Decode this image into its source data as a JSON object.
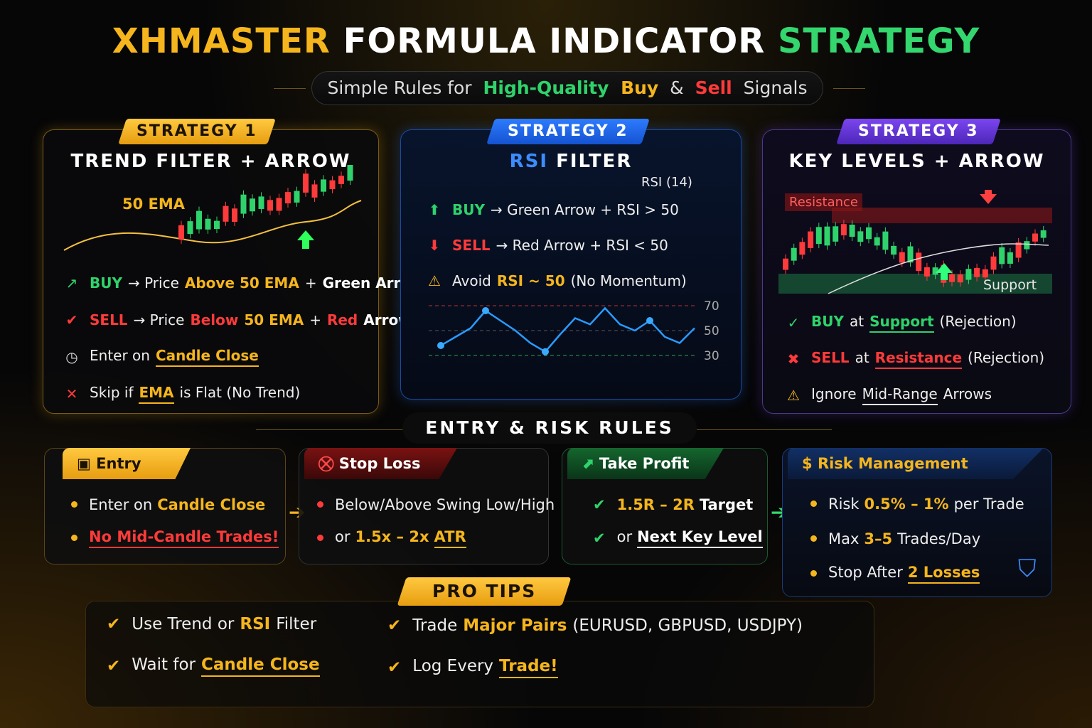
{
  "title": {
    "part1": "XHMASTER",
    "part2": "FORMULA INDICATOR",
    "part3": "STRATEGY"
  },
  "subtitle": [
    {
      "t": "Simple Rules for ",
      "c": ""
    },
    {
      "t": "High-Quality",
      "c": "g"
    },
    {
      "t": " Buy",
      "c": "y"
    },
    {
      "t": " & ",
      "c": ""
    },
    {
      "t": "Sell",
      "c": "r"
    },
    {
      "t": " Signals",
      "c": ""
    }
  ],
  "s1": {
    "tab": "STRATEGY 1",
    "title": "TREND FILTER + ARROW",
    "chart_label": "50 EMA",
    "rules": [
      {
        "icon": "trend-up-icon",
        "glyph": "↗",
        "col": "#2fd36b",
        "parts": [
          {
            "t": "BUY",
            "c": "g"
          },
          {
            "t": "→ Price",
            "c": ""
          },
          {
            "t": "Above 50 EMA",
            "c": "y"
          },
          {
            "t": "+",
            "c": ""
          },
          {
            "t": "Green Arrow",
            "c": "w"
          }
        ]
      },
      {
        "icon": "check-icon",
        "glyph": "✔",
        "col": "#ff3a3a",
        "parts": [
          {
            "t": "SELL",
            "c": "r"
          },
          {
            "t": "→ Price",
            "c": ""
          },
          {
            "t": "Below",
            "c": "r"
          },
          {
            "t": "50 EMA",
            "c": "y"
          },
          {
            "t": "+",
            "c": ""
          },
          {
            "t": "Red",
            "c": "r"
          },
          {
            "t": "Arrow",
            "c": "w"
          }
        ]
      },
      {
        "icon": "clock-icon",
        "glyph": "◷",
        "col": "#ddd",
        "parts": [
          {
            "t": "Enter on",
            "c": ""
          },
          {
            "t": "Candle Close",
            "c": "y u"
          }
        ]
      },
      {
        "icon": "close-icon",
        "glyph": "✕",
        "col": "#ff3a3a",
        "parts": [
          {
            "t": "Skip if",
            "c": ""
          },
          {
            "t": "EMA",
            "c": "y u"
          },
          {
            "t": "is Flat (No Trend)",
            "c": ""
          }
        ]
      }
    ]
  },
  "s2": {
    "tab": "STRATEGY 2",
    "title_a": "RSI",
    "title_b": "FILTER",
    "rsi_label": "RSI (14)",
    "rules": [
      {
        "icon": "arrow-up-icon",
        "glyph": "⬆",
        "col": "#2fd36b",
        "parts": [
          {
            "t": "BUY",
            "c": "g"
          },
          {
            "t": "→  Green Arrow  +  RSI > 50",
            "c": ""
          }
        ]
      },
      {
        "icon": "arrow-down-icon",
        "glyph": "⬇",
        "col": "#ff3a3a",
        "parts": [
          {
            "t": "SELL",
            "c": "r"
          },
          {
            "t": "→  Red Arrow  +  RSI < 50",
            "c": ""
          }
        ]
      },
      {
        "icon": "warning-icon",
        "glyph": "⚠",
        "col": "#f5b51c",
        "parts": [
          {
            "t": "Avoid",
            "c": ""
          },
          {
            "t": "RSI ~ 50",
            "c": "y"
          },
          {
            "t": "(No Momentum)",
            "c": ""
          }
        ]
      }
    ],
    "levels": [
      "70",
      "50",
      "30"
    ],
    "rsi_values": [
      38,
      45,
      52,
      66,
      58,
      50,
      40,
      33,
      47,
      60,
      55,
      68,
      55,
      50,
      58,
      45,
      40,
      52
    ]
  },
  "s3": {
    "tab": "STRATEGY 3",
    "title": "KEY LEVELS + ARROW",
    "resistance": "Resistance",
    "support": "Support",
    "rules": [
      {
        "icon": "check-circle-icon",
        "glyph": "✓",
        "col": "#2fd36b",
        "parts": [
          {
            "t": "BUY",
            "c": "g"
          },
          {
            "t": "at",
            "c": ""
          },
          {
            "t": "Support",
            "c": "g u"
          },
          {
            "t": "(Rejection)",
            "c": ""
          }
        ]
      },
      {
        "icon": "x-circle-icon",
        "glyph": "✖",
        "col": "#ff3a3a",
        "parts": [
          {
            "t": "SELL",
            "c": "r"
          },
          {
            "t": "at",
            "c": ""
          },
          {
            "t": "Resistance",
            "c": "r u"
          },
          {
            "t": "(Rejection)",
            "c": ""
          }
        ]
      },
      {
        "icon": "warning-icon",
        "glyph": "⚠",
        "col": "#f5b51c",
        "parts": [
          {
            "t": "Ignore",
            "c": ""
          },
          {
            "t": "Mid-Range",
            "c": "u"
          },
          {
            "t": "Arrows",
            "c": ""
          }
        ]
      }
    ]
  },
  "section": "ENTRY & RISK RULES",
  "entry": {
    "label": "Entry",
    "items": [
      [
        {
          "t": "Enter on",
          "c": ""
        },
        {
          "t": "Candle Close",
          "c": "y"
        }
      ],
      [
        {
          "t": "No Mid-Candle Trades!",
          "c": "r u"
        }
      ]
    ]
  },
  "stoploss": {
    "label": "Stop Loss",
    "items": [
      [
        {
          "t": "Below/Above Swing Low/High",
          "c": ""
        }
      ],
      [
        {
          "t": "or",
          "c": ""
        },
        {
          "t": "1.5x – 2x",
          "c": "y"
        },
        {
          "t": "ATR",
          "c": "y u"
        }
      ]
    ]
  },
  "takeprofit": {
    "label": "Take Profit",
    "items": [
      [
        {
          "t": "1.5R – 2R",
          "c": "y"
        },
        {
          "t": "Target",
          "c": "w"
        }
      ],
      [
        {
          "t": "or",
          "c": ""
        },
        {
          "t": "Next Key Level",
          "c": "w u"
        }
      ]
    ]
  },
  "risk": {
    "label": "Risk Management",
    "items": [
      [
        {
          "t": "Risk",
          "c": ""
        },
        {
          "t": "0.5% – 1%",
          "c": "y"
        },
        {
          "t": "per Trade",
          "c": ""
        }
      ],
      [
        {
          "t": "Max",
          "c": ""
        },
        {
          "t": "3–5",
          "c": "y"
        },
        {
          "t": "Trades/Day",
          "c": ""
        }
      ],
      [
        {
          "t": "Stop After",
          "c": ""
        },
        {
          "t": "2 Losses",
          "c": "y u"
        }
      ]
    ]
  },
  "protips": {
    "label": "PRO TIPS",
    "items": [
      [
        {
          "t": "Use Trend or",
          "c": ""
        },
        {
          "t": "RSI",
          "c": "y"
        },
        {
          "t": "Filter",
          "c": ""
        }
      ],
      [
        {
          "t": "Trade",
          "c": ""
        },
        {
          "t": "Major Pairs",
          "c": "y"
        },
        {
          "t": "(EURUSD, GBPUSD, USDJPY)",
          "c": ""
        }
      ],
      [
        {
          "t": "Wait for",
          "c": ""
        },
        {
          "t": "Candle Close",
          "c": "y u"
        }
      ],
      [
        {
          "t": "Log Every",
          "c": ""
        },
        {
          "t": "Trade!",
          "c": "y u"
        }
      ]
    ]
  },
  "colors": {
    "gold": "#f5b51c",
    "green": "#2fd36b",
    "red": "#ff3a3a",
    "blue": "#1f6fff",
    "purple": "#6a3bd8"
  }
}
